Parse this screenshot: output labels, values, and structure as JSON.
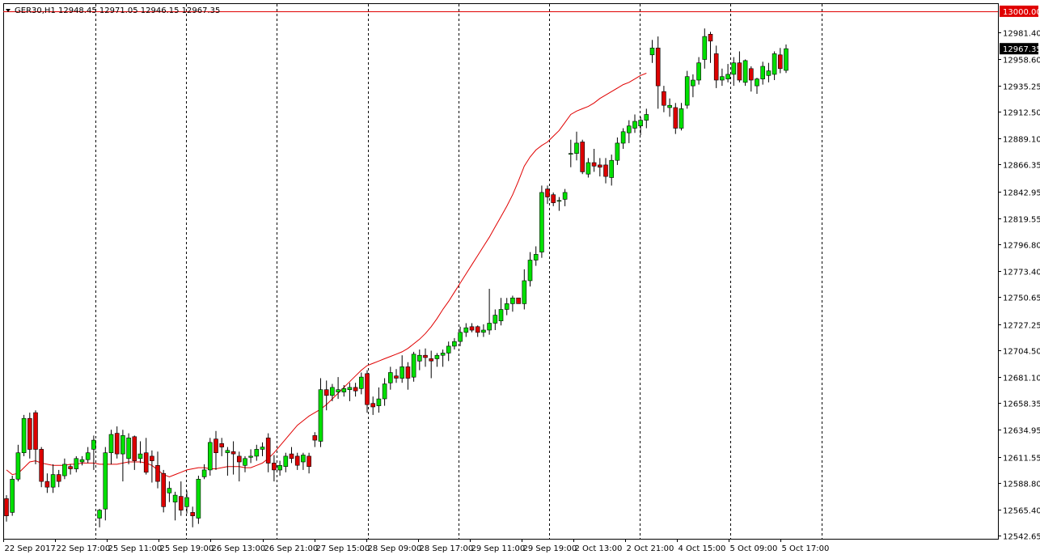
{
  "chart_data": {
    "type": "candlestick",
    "symbol": "GER30,H1",
    "ohlc_header": "12948.45 12971.05 12946.15 12967.35",
    "header_text": "GER30,H1  12948.45 12971.05 12946.15 12967.35",
    "ylim": [
      12540.0,
      13007.0
    ],
    "y_ticks": [
      "12981.40",
      "12958.60",
      "12935.25",
      "12912.50",
      "12889.10",
      "12866.35",
      "12842.95",
      "12819.55",
      "12796.80",
      "12773.40",
      "12750.65",
      "12727.25",
      "12704.50",
      "12681.10",
      "12658.35",
      "12634.95",
      "12611.55",
      "12588.80",
      "12565.40",
      "12542.65"
    ],
    "x_ticks": [
      "22 Sep 2017",
      "22 Sep 17:00",
      "25 Sep 11:00",
      "25 Sep 19:00",
      "26 Sep 13:00",
      "26 Sep 21:00",
      "27 Sep 15:00",
      "28 Sep 09:00",
      "28 Sep 17:00",
      "29 Sep 11:00",
      "29 Sep 19:00",
      "2 Oct 13:00",
      "2 Oct 21:00",
      "4 Oct 15:00",
      "5 Oct 09:00",
      "5 Oct 17:00"
    ],
    "price_line": {
      "label": "13000.00",
      "value": 13000.0,
      "color": "#e00000"
    },
    "current_price": {
      "label": "12967.35",
      "value": 12967.35
    },
    "separator_count": 9,
    "grid": false,
    "colors": {
      "bull": "#00e000",
      "bear": "#dd0000",
      "wick": "#000000",
      "ma": "#e00000"
    },
    "candles": [
      [
        12575,
        12578,
        12555,
        12560
      ],
      [
        12563,
        12595,
        12560,
        12592
      ],
      [
        12592,
        12622,
        12590,
        12615
      ],
      [
        12615,
        12648,
        12612,
        12645
      ],
      [
        12645,
        12650,
        12610,
        12618
      ],
      [
        12650,
        12652,
        12605,
        12618
      ],
      [
        12618,
        12620,
        12585,
        12590
      ],
      [
        12590,
        12597,
        12580,
        12585
      ],
      [
        12585,
        12605,
        12580,
        12596
      ],
      [
        12596,
        12600,
        12585,
        12590
      ],
      [
        12595,
        12610,
        12592,
        12605
      ],
      [
        12603,
        12605,
        12596,
        12601
      ],
      [
        12601,
        12612,
        12598,
        12610
      ],
      [
        12607,
        12612,
        12604,
        12609
      ],
      [
        12609,
        12620,
        12606,
        12615
      ],
      [
        12618,
        12630,
        12600,
        12626
      ],
      [
        12558,
        12566,
        12550,
        12565
      ],
      [
        12566,
        12620,
        12556,
        12615
      ],
      [
        12615,
        12635,
        12605,
        12631
      ],
      [
        12632,
        12638,
        12610,
        12614
      ],
      [
        12614,
        12635,
        12590,
        12630
      ],
      [
        12610,
        12632,
        12605,
        12628
      ],
      [
        12629,
        12630,
        12600,
        12608
      ],
      [
        12610,
        12625,
        12606,
        12614
      ],
      [
        12615,
        12628,
        12596,
        12598
      ],
      [
        12612,
        12617,
        12589,
        12608
      ],
      [
        12604,
        12616,
        12584,
        12590
      ],
      [
        12597,
        12600,
        12563,
        12568
      ],
      [
        12580,
        12590,
        12572,
        12584
      ],
      [
        12572,
        12581,
        12556,
        12578
      ],
      [
        12577,
        12590,
        12560,
        12565
      ],
      [
        12568,
        12582,
        12562,
        12576
      ],
      [
        12563,
        12568,
        12550,
        12560
      ],
      [
        12558,
        12595,
        12553,
        12592
      ],
      [
        12594,
        12605,
        12592,
        12600
      ],
      [
        12600,
        12628,
        12595,
        12624
      ],
      [
        12627,
        12634,
        12600,
        12615
      ],
      [
        12623,
        12628,
        12612,
        12620
      ],
      [
        12615,
        12620,
        12595,
        12617
      ],
      [
        12616,
        12625,
        12596,
        12614
      ],
      [
        12612,
        12616,
        12590,
        12607
      ],
      [
        12604,
        12612,
        12598,
        12610
      ],
      [
        12611,
        12618,
        12606,
        12612
      ],
      [
        12612,
        12622,
        12608,
        12618
      ],
      [
        12618,
        12624,
        12612,
        12620
      ],
      [
        12628,
        12632,
        12598,
        12606
      ],
      [
        12606,
        12613,
        12590,
        12600
      ],
      [
        12600,
        12608,
        12595,
        12604
      ],
      [
        12603,
        12615,
        12598,
        12612
      ],
      [
        12614,
        12620,
        12606,
        12610
      ],
      [
        12612,
        12615,
        12600,
        12604
      ],
      [
        12607,
        12615,
        12600,
        12613
      ],
      [
        12612,
        12615,
        12597,
        12603
      ],
      [
        12630,
        12633,
        12620,
        12626
      ],
      [
        12625,
        12680,
        12620,
        12670
      ],
      [
        12670,
        12678,
        12652,
        12665
      ],
      [
        12665,
        12675,
        12660,
        12672
      ],
      [
        12668,
        12681,
        12662,
        12670
      ],
      [
        12668,
        12674,
        12664,
        12671
      ],
      [
        12670,
        12676,
        12660,
        12672
      ],
      [
        12672,
        12676,
        12664,
        12669
      ],
      [
        12671,
        12685,
        12666,
        12681
      ],
      [
        12684,
        12687,
        12650,
        12657
      ],
      [
        12658,
        12664,
        12648,
        12655
      ],
      [
        12656,
        12672,
        12650,
        12662
      ],
      [
        12662,
        12680,
        12656,
        12675
      ],
      [
        12676,
        12690,
        12670,
        12685
      ],
      [
        12682,
        12688,
        12676,
        12680
      ],
      [
        12680,
        12700,
        12676,
        12690
      ],
      [
        12690,
        12694,
        12670,
        12680
      ],
      [
        12681,
        12703,
        12677,
        12701
      ],
      [
        12695,
        12705,
        12687,
        12700
      ],
      [
        12700,
        12706,
        12690,
        12698
      ],
      [
        12697,
        12704,
        12680,
        12695
      ],
      [
        12697,
        12702,
        12690,
        12700
      ],
      [
        12700,
        12705,
        12690,
        12702
      ],
      [
        12702,
        12712,
        12695,
        12708
      ],
      [
        12708,
        12715,
        12705,
        12712
      ],
      [
        12712,
        12725,
        12708,
        12720
      ],
      [
        12720,
        12728,
        12716,
        12724
      ],
      [
        12725,
        12728,
        12720,
        12722
      ],
      [
        12725,
        12726,
        12716,
        12720
      ],
      [
        12720,
        12727,
        12716,
        12722
      ],
      [
        12722,
        12758,
        12718,
        12728
      ],
      [
        12728,
        12740,
        12722,
        12735
      ],
      [
        12730,
        12750,
        12726,
        12740
      ],
      [
        12740,
        12750,
        12735,
        12745
      ],
      [
        12745,
        12752,
        12738,
        12750
      ],
      [
        12750,
        12750,
        12745,
        12745
      ],
      [
        12745,
        12775,
        12740,
        12765
      ],
      [
        12765,
        12790,
        12760,
        12783
      ],
      [
        12783,
        12795,
        12778,
        12788
      ],
      [
        12790,
        12848,
        12785,
        12842
      ],
      [
        12845,
        12848,
        12832,
        12838
      ],
      [
        12840,
        12842,
        12830,
        12833
      ],
      [
        12835,
        12838,
        12826,
        12835
      ],
      [
        12836,
        12845,
        12830,
        12842
      ],
      [
        12876,
        12888,
        12864,
        12876
      ],
      [
        12876,
        12895,
        12870,
        12885
      ],
      [
        12886,
        12888,
        12858,
        12860
      ],
      [
        12858,
        12872,
        12855,
        12868
      ],
      [
        12868,
        12880,
        12860,
        12865
      ],
      [
        12866,
        12872,
        12856,
        12864
      ],
      [
        12866,
        12872,
        12850,
        12856
      ],
      [
        12855,
        12875,
        12848,
        12870
      ],
      [
        12870,
        12890,
        12866,
        12885
      ],
      [
        12885,
        12898,
        12880,
        12895
      ],
      [
        12894,
        12905,
        12885,
        12900
      ],
      [
        12898,
        12910,
        12894,
        12904
      ],
      [
        12900,
        12908,
        12892,
        12905
      ],
      [
        12905,
        12915,
        12898,
        12910
      ],
      [
        12962,
        12975,
        12955,
        12968
      ],
      [
        12968,
        12978,
        12915,
        12935
      ],
      [
        12930,
        12935,
        12912,
        12918
      ],
      [
        12916,
        12924,
        12908,
        12918
      ],
      [
        12916,
        12920,
        12893,
        12898
      ],
      [
        12898,
        12920,
        12896,
        12915
      ],
      [
        12918,
        12948,
        12915,
        12943
      ],
      [
        12935,
        12945,
        12925,
        12940
      ],
      [
        12940,
        12960,
        12936,
        12955
      ],
      [
        12958,
        12985,
        12950,
        12978
      ],
      [
        12980,
        12982,
        12955,
        12974
      ],
      [
        12963,
        12970,
        12933,
        12940
      ],
      [
        12940,
        12950,
        12935,
        12943
      ],
      [
        12941,
        12954,
        12938,
        12945
      ],
      [
        12945,
        12960,
        12935,
        12955
      ],
      [
        12955,
        12965,
        12938,
        12940
      ],
      [
        12938,
        12958,
        12935,
        12957
      ],
      [
        12950,
        12952,
        12930,
        12940
      ],
      [
        12935,
        12942,
        12928,
        12941
      ],
      [
        12941,
        12956,
        12936,
        12952
      ],
      [
        12944,
        12955,
        12938,
        12948
      ],
      [
        12945,
        12965,
        12940,
        12963
      ],
      [
        12962,
        12968,
        12946,
        12950
      ],
      [
        12948.45,
        12971.05,
        12946.15,
        12967.35
      ]
    ],
    "ma": [
      12600,
      12596,
      12597,
      12602,
      12607,
      12608,
      12606,
      12605,
      12604,
      12604,
      12604,
      12605,
      12605,
      12606,
      12606,
      12606,
      12605,
      12605,
      12605,
      12605,
      12606,
      12607,
      12607,
      12607,
      12606,
      12604,
      12600,
      12596,
      12594,
      12596,
      12598,
      12600,
      12601,
      12602,
      12602,
      12601,
      12601,
      12602,
      12603,
      12603,
      12603,
      12602,
      12602,
      12604,
      12606,
      12610,
      12615,
      12621,
      12627,
      12633,
      12639,
      12643,
      12647,
      12650,
      12653,
      12657,
      12662,
      12667,
      12672,
      12677,
      12682,
      12687,
      12691,
      12693,
      12695,
      12697,
      12699,
      12701,
      12703,
      12706,
      12710,
      12714,
      12719,
      12725,
      12732,
      12740,
      12747,
      12755,
      12763,
      12771,
      12779,
      12787,
      12795,
      12803,
      12812,
      12821,
      12830,
      12840,
      12852,
      12865,
      12873,
      12879,
      12883,
      12886,
      12891,
      12896,
      12903,
      12910,
      12913,
      12915,
      12917,
      12920,
      12924,
      12927,
      12930,
      12933,
      12936,
      12938,
      12941,
      12944,
      12946
    ]
  }
}
